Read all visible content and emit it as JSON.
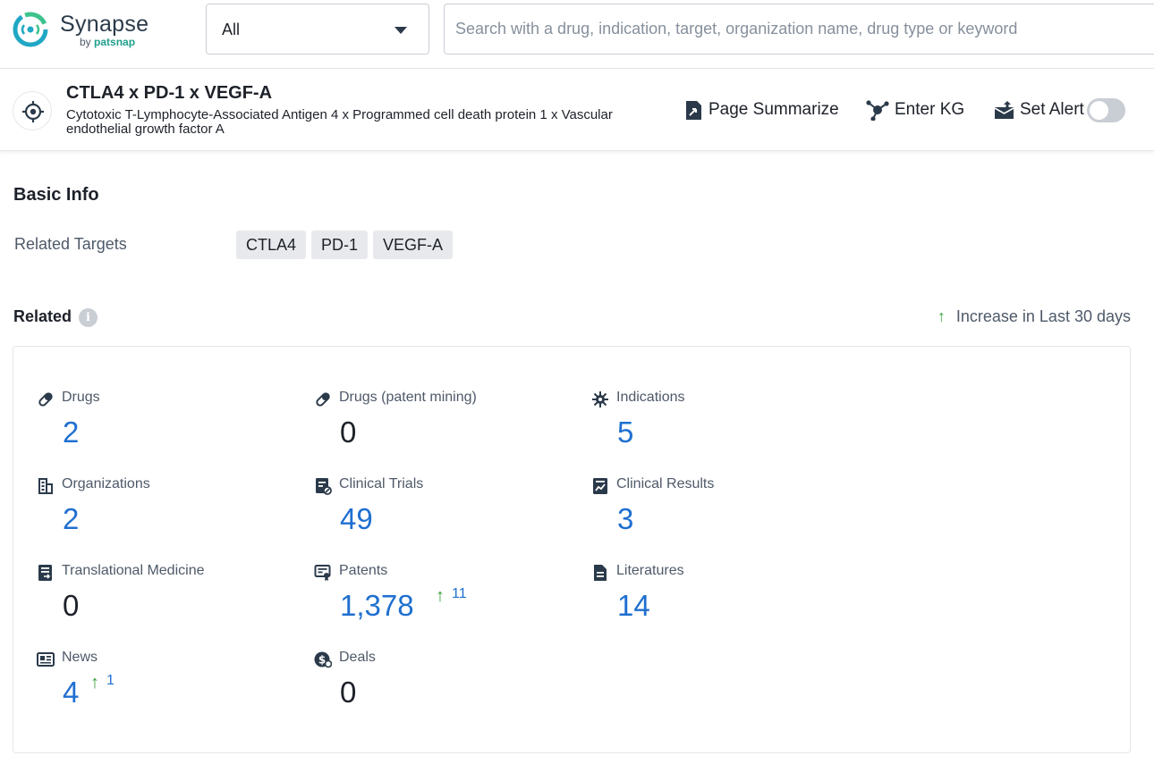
{
  "app": {
    "name": "Synapse",
    "by_prefix": "by",
    "by_brand": "patsnap"
  },
  "search": {
    "scope_value": "All",
    "placeholder": "Search with a drug, indication, target, organization name, drug type or keyword",
    "value": ""
  },
  "header": {
    "title": "CTLA4 x PD-1 x VEGF-A",
    "subtitle": "Cytotoxic T-Lymphocyte-Associated Antigen 4 x Programmed cell death protein 1 x Vascular endothelial growth factor A",
    "actions": {
      "summarize": "Page Summarize",
      "kg": "Enter KG",
      "alert": "Set Alert",
      "alert_enabled": false
    }
  },
  "basic_info": {
    "title": "Basic Info",
    "related_targets_label": "Related Targets",
    "targets": [
      "CTLA4",
      "PD-1",
      "VEGF-A"
    ]
  },
  "related": {
    "title": "Related",
    "increase_note": "Increase in Last 30 days",
    "stats": [
      {
        "label": "Drugs",
        "value": "2",
        "link": true,
        "icon": "pill-icon"
      },
      {
        "label": "Drugs (patent mining)",
        "value": "0",
        "link": false,
        "icon": "pill-icon"
      },
      {
        "label": "Indications",
        "value": "5",
        "link": true,
        "icon": "virus-icon"
      },
      {
        "label": "Organizations",
        "value": "2",
        "link": true,
        "icon": "building-icon"
      },
      {
        "label": "Clinical Trials",
        "value": "49",
        "link": true,
        "icon": "clinical-trials-icon"
      },
      {
        "label": "Clinical Results",
        "value": "3",
        "link": true,
        "icon": "clinical-results-icon"
      },
      {
        "label": "Translational Medicine",
        "value": "0",
        "link": false,
        "icon": "translational-icon"
      },
      {
        "label": "Patents",
        "value": "1,378",
        "link": true,
        "icon": "patent-icon",
        "increase": "11"
      },
      {
        "label": "Literatures",
        "value": "14",
        "link": true,
        "icon": "document-icon"
      },
      {
        "label": "News",
        "value": "4",
        "link": true,
        "icon": "news-icon",
        "increase": "1"
      },
      {
        "label": "Deals",
        "value": "0",
        "link": false,
        "icon": "deals-icon"
      }
    ]
  },
  "colors": {
    "link_blue": "#1f6fd0",
    "increase_green": "#3aa13a",
    "brand_teal": "#1f9f8c"
  }
}
